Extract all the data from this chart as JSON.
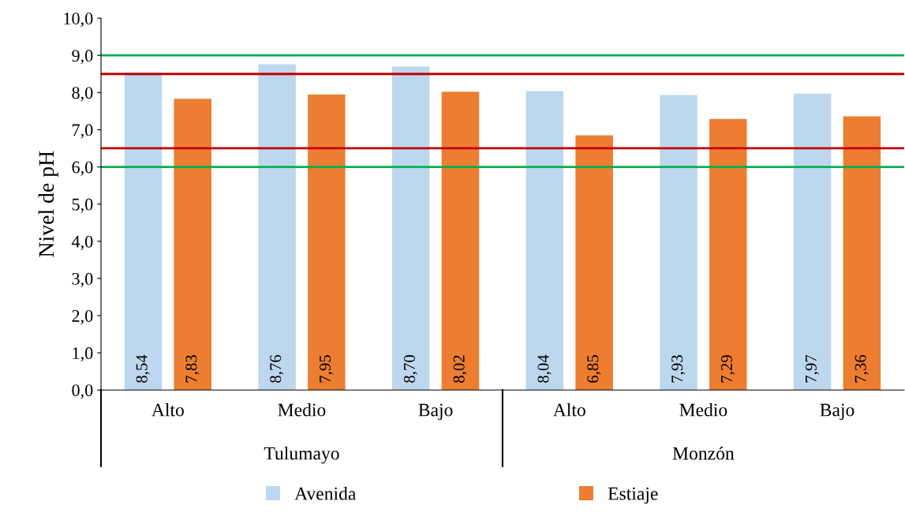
{
  "chart_data": {
    "type": "bar",
    "ylabel": "Nivel de pH",
    "categories": [
      "Alto",
      "Medio",
      "Bajo",
      "Alto",
      "Medio",
      "Bajo"
    ],
    "series": [
      {
        "name": "Avenida",
        "color": "#bdd7ee",
        "values": [
          8.54,
          8.76,
          8.7,
          8.04,
          7.93,
          7.97
        ],
        "value_labels": [
          "8,54",
          "8,76",
          "8,70",
          "8,04",
          "7,93",
          "7,97"
        ]
      },
      {
        "name": "Estiaje",
        "color": "#ed7d31",
        "values": [
          7.83,
          7.95,
          8.02,
          6.85,
          7.29,
          7.36
        ],
        "value_labels": [
          "7,83",
          "7,95",
          "8,02",
          "6,85",
          "7,29",
          "7,36"
        ]
      }
    ],
    "ylim": [
      0,
      10
    ],
    "yticks": [
      {
        "value": 0,
        "label": "0,0"
      },
      {
        "value": 1,
        "label": "1,0"
      },
      {
        "value": 2,
        "label": "2,0"
      },
      {
        "value": 3,
        "label": "3,0"
      },
      {
        "value": 4,
        "label": "4,0"
      },
      {
        "value": 5,
        "label": "5,0"
      },
      {
        "value": 6,
        "label": "6,0"
      },
      {
        "value": 7,
        "label": "7,0"
      },
      {
        "value": 8,
        "label": "8,0"
      },
      {
        "value": 9,
        "label": "9,0"
      },
      {
        "value": 10,
        "label": "10,0"
      }
    ],
    "ref_lines": [
      {
        "axis": "y",
        "value": 9.0,
        "color": "#00b050"
      },
      {
        "axis": "y",
        "value": 8.5,
        "color": "#c00000"
      },
      {
        "axis": "y",
        "value": 6.5,
        "color": "#c00000"
      },
      {
        "axis": "y",
        "value": 6.0,
        "color": "#00b050"
      }
    ],
    "annotations": [
      "Tulumayo",
      "Monzón"
    ],
    "grid": false,
    "legend": "bottom"
  }
}
